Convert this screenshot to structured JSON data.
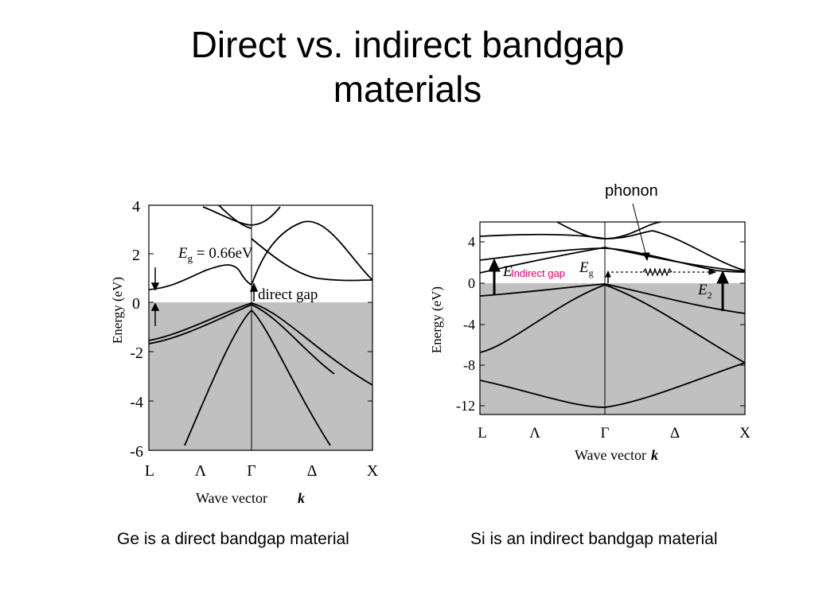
{
  "slide": {
    "title_line1": "Direct vs. indirect bandgap",
    "title_line2": "materials"
  },
  "ge_panel": {
    "y_ticks": [
      "4",
      "2",
      "0",
      "-2",
      "-4",
      "-6"
    ],
    "x_ticks": [
      "L",
      "Λ",
      "Γ",
      "Δ",
      "X"
    ],
    "ylabel": "Energy (eV)",
    "xlabel": "Wave vector",
    "xlabel_k": "k",
    "eg_symbol": "E",
    "eg_sub": "g",
    "eg_value": " = 0.66eV",
    "direct_gap_label": "direct gap",
    "caption": "Ge is a direct bandgap material"
  },
  "si_panel": {
    "y_ticks": [
      "4",
      "0",
      "-4",
      "-8",
      "-12"
    ],
    "x_ticks": [
      "L",
      "Λ",
      "Γ",
      "Δ",
      "X"
    ],
    "ylabel": "Energy (eV)",
    "xlabel": "Wave vector",
    "xlabel_k": "k",
    "e1_symbol": "E",
    "indirect_gap_label": "Indirect gap",
    "eg_symbol": "E",
    "eg_sub": "g",
    "e2_symbol": "E",
    "e2_sub": "2",
    "phonon_label": "phonon",
    "caption": "Si is an indirect bandgap material"
  },
  "colors": {
    "valence_fill": "#c0c0c0",
    "indirect_label": "#e0006e",
    "ink": "#000000"
  }
}
